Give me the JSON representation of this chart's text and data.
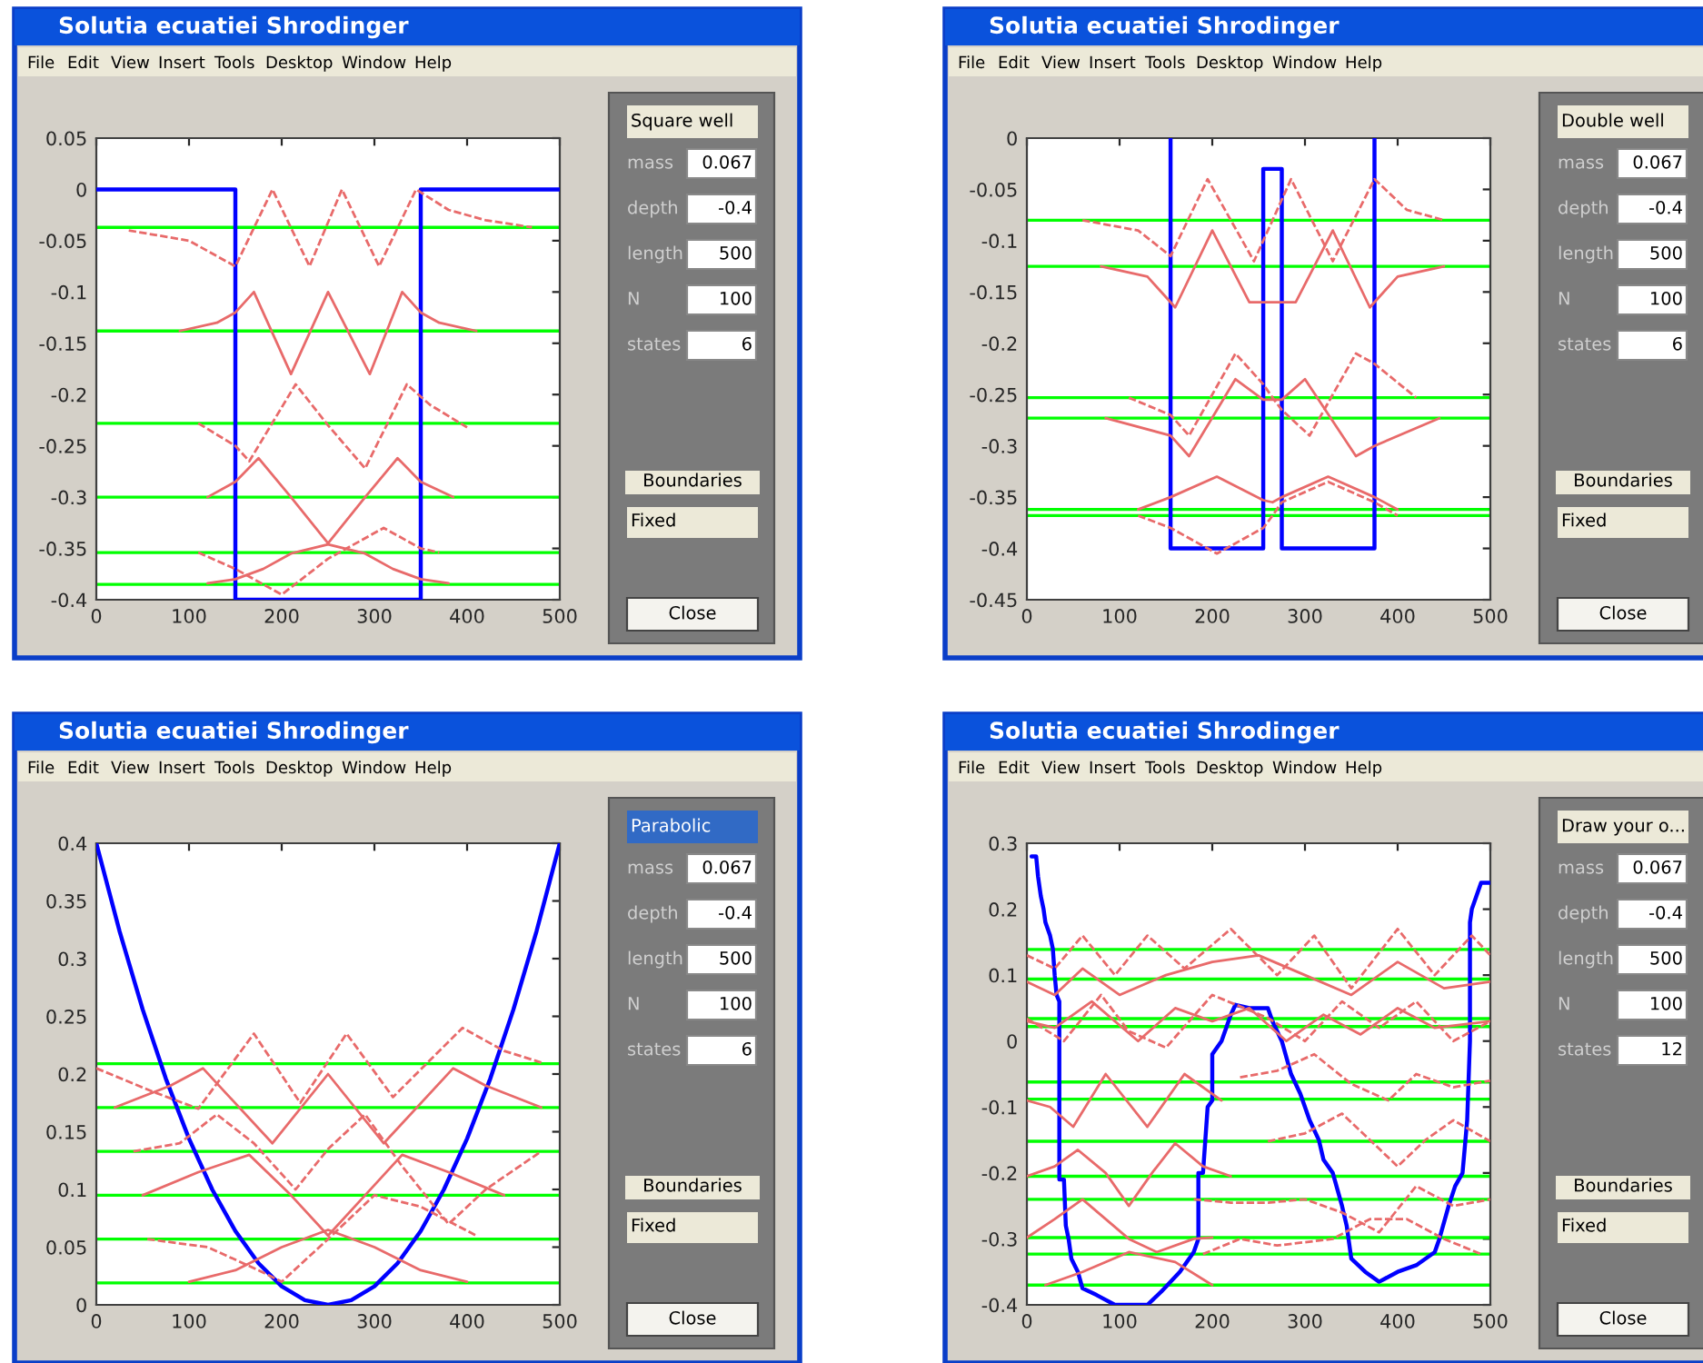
{
  "chart_data": [
    {
      "type": "line",
      "title": "Solutia ecuatiei Shrodinger",
      "xlim": [
        0,
        500
      ],
      "xticks": [
        0,
        100,
        200,
        300,
        400,
        500
      ],
      "ylim": [
        -0.4,
        0.05
      ],
      "yticks": [
        -0.4,
        -0.35,
        -0.3,
        -0.25,
        -0.2,
        -0.15,
        -0.1,
        -0.05,
        0,
        0.05
      ],
      "grid": false,
      "legend": false,
      "series": [
        {
          "color": "#0000ff",
          "line_style": "solid",
          "x": [
            0,
            150,
            150,
            350,
            350,
            500
          ],
          "values": [
            0,
            0,
            -0.4,
            -0.4,
            0,
            0
          ]
        },
        {
          "color": "#e86a6a",
          "line_style": "solid",
          "x": [
            120,
            150,
            180,
            210,
            250,
            290,
            320,
            350,
            380
          ],
          "values": [
            -0.384,
            -0.38,
            -0.37,
            -0.355,
            -0.346,
            -0.355,
            -0.37,
            -0.38,
            -0.384
          ]
        },
        {
          "color": "#e86a6a",
          "line_style": "dashed",
          "x": [
            110,
            150,
            200,
            250,
            310,
            350,
            370
          ],
          "values": [
            -0.354,
            -0.37,
            -0.395,
            -0.36,
            -0.33,
            -0.35,
            -0.354
          ]
        },
        {
          "color": "#e86a6a",
          "line_style": "solid",
          "x": [
            120,
            150,
            175,
            210,
            250,
            290,
            325,
            350,
            385
          ],
          "values": [
            -0.3,
            -0.285,
            -0.262,
            -0.3,
            -0.345,
            -0.3,
            -0.262,
            -0.285,
            -0.3
          ]
        },
        {
          "color": "#e86a6a",
          "line_style": "dashed",
          "x": [
            110,
            150,
            165,
            215,
            250,
            290,
            335,
            360,
            400
          ],
          "values": [
            -0.228,
            -0.25,
            -0.265,
            -0.19,
            -0.23,
            -0.272,
            -0.19,
            -0.21,
            -0.232
          ]
        },
        {
          "color": "#e86a6a",
          "line_style": "solid",
          "x": [
            90,
            130,
            150,
            170,
            210,
            250,
            295,
            330,
            350,
            370,
            410
          ],
          "values": [
            -0.138,
            -0.13,
            -0.12,
            -0.1,
            -0.18,
            -0.1,
            -0.18,
            -0.1,
            -0.12,
            -0.13,
            -0.138
          ]
        },
        {
          "color": "#e86a6a",
          "line_style": "dashed",
          "x": [
            35,
            100,
            150,
            190,
            230,
            265,
            305,
            345,
            380,
            420,
            470
          ],
          "values": [
            -0.04,
            -0.05,
            -0.075,
            0,
            -0.075,
            0,
            -0.075,
            0,
            -0.02,
            -0.03,
            -0.037
          ]
        }
      ],
      "ref_lines": [
        {
          "axis": "y",
          "value": -0.037,
          "color": "#00ff00"
        },
        {
          "axis": "y",
          "value": -0.138,
          "color": "#00ff00"
        },
        {
          "axis": "y",
          "value": -0.228,
          "color": "#00ff00"
        },
        {
          "axis": "y",
          "value": -0.3,
          "color": "#00ff00"
        },
        {
          "axis": "y",
          "value": -0.354,
          "color": "#00ff00"
        },
        {
          "axis": "y",
          "value": -0.385,
          "color": "#00ff00"
        }
      ],
      "annotations": [
        "File",
        "Edit",
        "View",
        "Insert",
        "Tools",
        "Desktop",
        "Window",
        "Help",
        "Square well",
        "mass",
        "0.067",
        "depth",
        "-0.4",
        "length",
        "500",
        "N",
        "100",
        "states",
        "6",
        "Boundaries",
        "Fixed",
        "Close"
      ]
    },
    {
      "type": "line",
      "title": "Solutia ecuatiei Shrodinger",
      "xlim": [
        0,
        500
      ],
      "xticks": [
        0,
        100,
        200,
        300,
        400,
        500
      ],
      "ylim": [
        -0.45,
        0
      ],
      "yticks": [
        -0.45,
        -0.4,
        -0.35,
        -0.3,
        -0.25,
        -0.2,
        -0.15,
        -0.1,
        -0.05,
        0
      ],
      "grid": false,
      "legend": false,
      "series": [
        {
          "color": "#0000ff",
          "line_style": "solid",
          "x": [
            155,
            155,
            255,
            255,
            275,
            275,
            375,
            375
          ],
          "values": [
            0,
            -0.4,
            -0.4,
            -0.03,
            -0.03,
            -0.4,
            -0.4,
            0
          ]
        },
        {
          "color": "#e86a6a",
          "line_style": "solid",
          "x": [
            120,
            155,
            205,
            255,
            265,
            275,
            325,
            375,
            400
          ],
          "values": [
            -0.362,
            -0.35,
            -0.33,
            -0.353,
            -0.355,
            -0.35,
            -0.33,
            -0.35,
            -0.362
          ]
        },
        {
          "color": "#e86a6a",
          "line_style": "dashed",
          "x": [
            120,
            155,
            205,
            255,
            265,
            275,
            325,
            375,
            400
          ],
          "values": [
            -0.368,
            -0.38,
            -0.405,
            -0.38,
            -0.368,
            -0.355,
            -0.335,
            -0.355,
            -0.368
          ]
        },
        {
          "color": "#e86a6a",
          "line_style": "solid",
          "x": [
            85,
            155,
            175,
            225,
            255,
            275,
            300,
            355,
            375,
            445
          ],
          "values": [
            -0.273,
            -0.29,
            -0.31,
            -0.235,
            -0.255,
            -0.255,
            -0.235,
            -0.31,
            -0.3,
            -0.273
          ]
        },
        {
          "color": "#e86a6a",
          "line_style": "dashed",
          "x": [
            110,
            155,
            175,
            225,
            255,
            265,
            275,
            305,
            355,
            375,
            420
          ],
          "values": [
            -0.253,
            -0.27,
            -0.29,
            -0.21,
            -0.24,
            -0.253,
            -0.265,
            -0.29,
            -0.21,
            -0.22,
            -0.253
          ]
        },
        {
          "color": "#e86a6a",
          "line_style": "solid",
          "x": [
            80,
            130,
            160,
            200,
            240,
            265,
            290,
            330,
            370,
            400,
            450
          ],
          "values": [
            -0.125,
            -0.135,
            -0.165,
            -0.09,
            -0.16,
            -0.16,
            -0.16,
            -0.09,
            -0.165,
            -0.135,
            -0.125
          ]
        },
        {
          "color": "#e86a6a",
          "line_style": "dashed",
          "x": [
            60,
            120,
            155,
            195,
            245,
            265,
            285,
            330,
            375,
            410,
            450
          ],
          "values": [
            -0.08,
            -0.09,
            -0.115,
            -0.04,
            -0.12,
            -0.08,
            -0.04,
            -0.12,
            -0.04,
            -0.07,
            -0.08
          ]
        }
      ],
      "ref_lines": [
        {
          "axis": "y",
          "value": -0.08,
          "color": "#00ff00"
        },
        {
          "axis": "y",
          "value": -0.125,
          "color": "#00ff00"
        },
        {
          "axis": "y",
          "value": -0.253,
          "color": "#00ff00"
        },
        {
          "axis": "y",
          "value": -0.273,
          "color": "#00ff00"
        },
        {
          "axis": "y",
          "value": -0.362,
          "color": "#00ff00"
        },
        {
          "axis": "y",
          "value": -0.368,
          "color": "#00ff00"
        }
      ],
      "annotations": [
        "File",
        "Edit",
        "View",
        "Insert",
        "Tools",
        "Desktop",
        "Window",
        "Help",
        "Double well",
        "mass",
        "0.067",
        "depth",
        "-0.4",
        "length",
        "500",
        "N",
        "100",
        "states",
        "6",
        "Boundaries",
        "Fixed",
        "Close"
      ]
    },
    {
      "type": "line",
      "title": "Solutia ecuatiei Shrodinger",
      "xlim": [
        0,
        500
      ],
      "xticks": [
        0,
        100,
        200,
        300,
        400,
        500
      ],
      "ylim": [
        0,
        0.4
      ],
      "yticks": [
        0,
        0.05,
        0.1,
        0.15,
        0.2,
        0.25,
        0.3,
        0.35,
        0.4
      ],
      "grid": false,
      "legend": false,
      "series": [
        {
          "color": "#0000ff",
          "line_style": "solid",
          "x": [
            0,
            25,
            50,
            75,
            100,
            125,
            150,
            175,
            200,
            225,
            250,
            275,
            300,
            325,
            350,
            375,
            400,
            425,
            450,
            475,
            500
          ],
          "values": [
            0.4,
            0.324,
            0.256,
            0.196,
            0.144,
            0.1,
            0.064,
            0.036,
            0.016,
            0.004,
            0,
            0.004,
            0.016,
            0.036,
            0.064,
            0.1,
            0.144,
            0.196,
            0.256,
            0.324,
            0.4
          ]
        },
        {
          "color": "#e86a6a",
          "line_style": "solid",
          "x": [
            100,
            150,
            200,
            250,
            300,
            350,
            400
          ],
          "values": [
            0.02,
            0.03,
            0.05,
            0.065,
            0.05,
            0.03,
            0.02
          ]
        },
        {
          "color": "#e86a6a",
          "line_style": "dashed",
          "x": [
            55,
            120,
            175,
            200,
            250,
            300,
            350,
            410
          ],
          "values": [
            0.057,
            0.05,
            0.03,
            0.02,
            0.057,
            0.095,
            0.085,
            0.06
          ]
        },
        {
          "color": "#e86a6a",
          "line_style": "solid",
          "x": [
            50,
            110,
            165,
            210,
            250,
            290,
            330,
            380,
            440
          ],
          "values": [
            0.095,
            0.115,
            0.13,
            0.095,
            0.06,
            0.095,
            0.13,
            0.115,
            0.095
          ]
        },
        {
          "color": "#e86a6a",
          "line_style": "dashed",
          "x": [
            40,
            90,
            130,
            170,
            215,
            250,
            290,
            330,
            380,
            420,
            480
          ],
          "values": [
            0.133,
            0.14,
            0.165,
            0.14,
            0.1,
            0.135,
            0.165,
            0.12,
            0.07,
            0.1,
            0.133
          ]
        },
        {
          "color": "#e86a6a",
          "line_style": "solid",
          "x": [
            20,
            80,
            115,
            190,
            250,
            310,
            385,
            420,
            480
          ],
          "values": [
            0.171,
            0.19,
            0.205,
            0.14,
            0.2,
            0.14,
            0.205,
            0.19,
            0.171
          ]
        },
        {
          "color": "#e86a6a",
          "line_style": "dashed",
          "x": [
            0,
            60,
            110,
            170,
            220,
            270,
            320,
            395,
            440,
            480
          ],
          "values": [
            0.205,
            0.185,
            0.17,
            0.235,
            0.175,
            0.235,
            0.18,
            0.24,
            0.22,
            0.21
          ]
        }
      ],
      "ref_lines": [
        {
          "axis": "y",
          "value": 0.019,
          "color": "#00ff00"
        },
        {
          "axis": "y",
          "value": 0.057,
          "color": "#00ff00"
        },
        {
          "axis": "y",
          "value": 0.095,
          "color": "#00ff00"
        },
        {
          "axis": "y",
          "value": 0.133,
          "color": "#00ff00"
        },
        {
          "axis": "y",
          "value": 0.171,
          "color": "#00ff00"
        },
        {
          "axis": "y",
          "value": 0.209,
          "color": "#00ff00"
        }
      ],
      "annotations": [
        "File",
        "Edit",
        "View",
        "Insert",
        "Tools",
        "Desktop",
        "Window",
        "Help",
        "Parabolic",
        "mass",
        "0.067",
        "depth",
        "-0.4",
        "length",
        "500",
        "N",
        "100",
        "states",
        "6",
        "Boundaries",
        "Fixed",
        "Close"
      ]
    },
    {
      "type": "line",
      "title": "Solutia ecuatiei Shrodinger",
      "xlim": [
        0,
        500
      ],
      "xticks": [
        0,
        100,
        200,
        300,
        400,
        500
      ],
      "ylim": [
        -0.4,
        0.3
      ],
      "yticks": [
        -0.4,
        -0.3,
        -0.2,
        -0.1,
        0,
        0.1,
        0.2,
        0.3
      ],
      "grid": false,
      "legend": false,
      "series": [
        {
          "color": "#0000ff",
          "line_style": "solid",
          "x": [
            5,
            10,
            12,
            15,
            18,
            20,
            25,
            28,
            30,
            32,
            35,
            35,
            40,
            42,
            45,
            48,
            55,
            60,
            75,
            95,
            130,
            145,
            165,
            180,
            185,
            185,
            190,
            195,
            200,
            200,
            210,
            215,
            220,
            225,
            240,
            260,
            265,
            275,
            285,
            295,
            305,
            315,
            320,
            330,
            340,
            345,
            350,
            365,
            380,
            400,
            420,
            440,
            445,
            455,
            462,
            470,
            475,
            478,
            478,
            480,
            485,
            490,
            495,
            500
          ],
          "values": [
            0.28,
            0.28,
            0.25,
            0.22,
            0.2,
            0.18,
            0.16,
            0.14,
            0.1,
            0.07,
            0.06,
            -0.21,
            -0.21,
            -0.28,
            -0.3,
            -0.33,
            -0.35,
            -0.375,
            -0.385,
            -0.4,
            -0.4,
            -0.38,
            -0.35,
            -0.32,
            -0.3,
            -0.2,
            -0.2,
            -0.1,
            -0.09,
            -0.02,
            0,
            0.02,
            0.04,
            0.055,
            0.05,
            0.05,
            0.03,
            0,
            -0.05,
            -0.08,
            -0.12,
            -0.15,
            -0.18,
            -0.2,
            -0.25,
            -0.28,
            -0.33,
            -0.35,
            -0.365,
            -0.35,
            -0.34,
            -0.32,
            -0.3,
            -0.25,
            -0.22,
            -0.2,
            -0.12,
            0,
            0.18,
            0.2,
            0.22,
            0.24,
            0.24,
            0.24
          ]
        },
        {
          "color": "#e86a6a",
          "line_style": "solid",
          "x": [
            20,
            60,
            110,
            160,
            200
          ],
          "values": [
            -0.37,
            -0.35,
            -0.32,
            -0.335,
            -0.37
          ]
        },
        {
          "color": "#e86a6a",
          "line_style": "dashed",
          "x": [
            190,
            230,
            270,
            330,
            370,
            410,
            450,
            490
          ],
          "values": [
            -0.323,
            -0.3,
            -0.31,
            -0.3,
            -0.27,
            -0.27,
            -0.3,
            -0.323
          ]
        },
        {
          "color": "#e86a6a",
          "line_style": "solid",
          "x": [
            0,
            30,
            60,
            110,
            140,
            180,
            200
          ],
          "values": [
            -0.298,
            -0.27,
            -0.24,
            -0.3,
            -0.32,
            -0.3,
            -0.298
          ]
        },
        {
          "color": "#e86a6a",
          "line_style": "dashed",
          "x": [
            180,
            220,
            260,
            300,
            340,
            380,
            420,
            460,
            500
          ],
          "values": [
            -0.24,
            -0.245,
            -0.245,
            -0.24,
            -0.26,
            -0.29,
            -0.22,
            -0.25,
            -0.24
          ]
        },
        {
          "color": "#e86a6a",
          "line_style": "solid",
          "x": [
            0,
            30,
            55,
            85,
            110,
            135,
            160,
            190,
            220
          ],
          "values": [
            -0.205,
            -0.19,
            -0.165,
            -0.2,
            -0.25,
            -0.2,
            -0.155,
            -0.19,
            -0.205
          ]
        },
        {
          "color": "#e86a6a",
          "line_style": "dashed",
          "x": [
            260,
            300,
            340,
            370,
            400,
            430,
            460,
            500
          ],
          "values": [
            -0.152,
            -0.14,
            -0.11,
            -0.15,
            -0.19,
            -0.15,
            -0.12,
            -0.152
          ]
        },
        {
          "color": "#e86a6a",
          "line_style": "solid",
          "x": [
            0,
            25,
            50,
            85,
            130,
            170,
            210
          ],
          "values": [
            -0.09,
            -0.1,
            -0.13,
            -0.05,
            -0.13,
            -0.05,
            -0.09
          ]
        },
        {
          "color": "#e86a6a",
          "line_style": "dashed",
          "x": [
            230,
            270,
            310,
            350,
            390,
            420,
            460,
            500
          ],
          "values": [
            -0.055,
            -0.045,
            -0.02,
            -0.065,
            -0.09,
            -0.05,
            -0.07,
            -0.06
          ]
        },
        {
          "color": "#e86a6a",
          "line_style": "solid",
          "x": [
            0,
            30,
            70,
            120,
            160,
            200,
            240,
            280,
            320,
            360,
            400,
            440,
            500
          ],
          "values": [
            0.03,
            0.02,
            0.06,
            0,
            0.05,
            0.03,
            0.05,
            0,
            0.04,
            0.01,
            0.05,
            0.02,
            0.03
          ]
        },
        {
          "color": "#e86a6a",
          "line_style": "dashed",
          "x": [
            0,
            40,
            80,
            110,
            150,
            200,
            260,
            300,
            340,
            380,
            420,
            460,
            500
          ],
          "values": [
            0.034,
            0,
            0.07,
            0.015,
            -0.01,
            0.07,
            0.035,
            0,
            0.06,
            0.02,
            0.06,
            0,
            0.03
          ]
        },
        {
          "color": "#e86a6a",
          "line_style": "solid",
          "x": [
            0,
            30,
            60,
            100,
            150,
            200,
            250,
            300,
            350,
            400,
            450,
            500
          ],
          "values": [
            0.09,
            0.07,
            0.11,
            0.07,
            0.1,
            0.12,
            0.13,
            0.1,
            0.07,
            0.12,
            0.08,
            0.09
          ]
        },
        {
          "color": "#e86a6a",
          "line_style": "dashed",
          "x": [
            0,
            30,
            60,
            95,
            130,
            170,
            220,
            270,
            310,
            350,
            400,
            440,
            480,
            500
          ],
          "values": [
            0.13,
            0.11,
            0.16,
            0.1,
            0.16,
            0.11,
            0.17,
            0.1,
            0.16,
            0.08,
            0.17,
            0.1,
            0.16,
            0.13
          ]
        }
      ],
      "ref_lines": [
        {
          "axis": "y",
          "value": 0.139,
          "color": "#00ff00"
        },
        {
          "axis": "y",
          "value": 0.094,
          "color": "#00ff00"
        },
        {
          "axis": "y",
          "value": 0.034,
          "color": "#00ff00"
        },
        {
          "axis": "y",
          "value": 0.022,
          "color": "#00ff00"
        },
        {
          "axis": "y",
          "value": -0.062,
          "color": "#00ff00"
        },
        {
          "axis": "y",
          "value": -0.088,
          "color": "#00ff00"
        },
        {
          "axis": "y",
          "value": -0.152,
          "color": "#00ff00"
        },
        {
          "axis": "y",
          "value": -0.205,
          "color": "#00ff00"
        },
        {
          "axis": "y",
          "value": -0.24,
          "color": "#00ff00"
        },
        {
          "axis": "y",
          "value": -0.298,
          "color": "#00ff00"
        },
        {
          "axis": "y",
          "value": -0.323,
          "color": "#00ff00"
        },
        {
          "axis": "y",
          "value": -0.37,
          "color": "#00ff00"
        }
      ],
      "annotations": [
        "File",
        "Edit",
        "View",
        "Insert",
        "Tools",
        "Desktop",
        "Window",
        "Help",
        "Draw your o...",
        "mass",
        "0.067",
        "depth",
        "-0.4",
        "length",
        "500",
        "N",
        "100",
        "states",
        "12",
        "Boundaries",
        "Fixed",
        "Close"
      ]
    }
  ]
}
